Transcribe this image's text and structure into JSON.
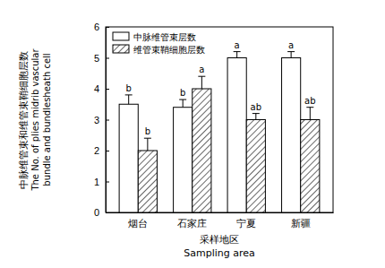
{
  "chart_data": {
    "type": "bar",
    "xlabel": [
      "采样地区",
      "Sampling area"
    ],
    "ylabel": [
      "中脉维管束和维管束鞘细胞层数",
      "The No. of plies midrib vascular",
      "bundle and bundlesheath cell"
    ],
    "categories": [
      "烟台",
      "石家庄",
      "宁夏",
      "新疆"
    ],
    "series": [
      {
        "name": "中脉维管束层数",
        "color": "#ffffff",
        "values": [
          3.5,
          3.4,
          5.0,
          5.0
        ],
        "errors": [
          0.3,
          0.25,
          0.2,
          0.2
        ],
        "labels": [
          "b",
          "b",
          "a",
          "a"
        ]
      },
      {
        "name": "维管束鞘细胞层数",
        "color": "#000000",
        "values": [
          2.0,
          4.0,
          3.0,
          3.0
        ],
        "errors": [
          0.4,
          0.4,
          0.2,
          0.4
        ],
        "labels": [
          "b",
          "a",
          "ab",
          "ab"
        ]
      }
    ],
    "ylim": [
      0,
      6
    ],
    "yticks": [
      0,
      1,
      2,
      3,
      4,
      5,
      6
    ],
    "legend": "upper left",
    "grid": false
  }
}
